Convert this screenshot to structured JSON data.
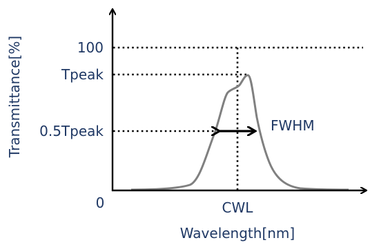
{
  "diagram": {
    "y_axis_label": "Transmittance[%]",
    "x_axis_label": "Wavelength[nm]",
    "tick_100": "100",
    "tick_tpeak": "Tpeak",
    "tick_half": "0.5Tpeak",
    "tick_zero": "0",
    "cwl_label": "CWL",
    "fwhm_label": "FWHM"
  },
  "colors": {
    "text": "#1f3864",
    "axis": "#000000",
    "curve": "#808080",
    "guides": "#000000"
  }
}
